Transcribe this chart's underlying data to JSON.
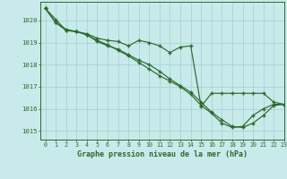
{
  "title": "Graphe pression niveau de la mer (hPa)",
  "background_color": "#c8eaea",
  "grid_color": "#a8d4d4",
  "line_color": "#2d6a2d",
  "xlim": [
    -0.5,
    23
  ],
  "ylim": [
    1014.6,
    1020.85
  ],
  "yticks": [
    1015,
    1016,
    1017,
    1018,
    1019,
    1020
  ],
  "xtick_labels": [
    "0",
    "1",
    "2",
    "3",
    "4",
    "5",
    "6",
    "7",
    "8",
    "9",
    "10",
    "11",
    "12",
    "13",
    "14",
    "15",
    "16",
    "17",
    "18",
    "19",
    "20",
    "21",
    "22",
    "23"
  ],
  "series": [
    [
      1020.55,
      1020.05,
      1019.55,
      1019.5,
      1019.4,
      1019.2,
      1019.1,
      1019.05,
      1018.85,
      1019.1,
      1019.0,
      1018.85,
      1018.55,
      1018.8,
      1018.85,
      1016.1,
      1016.7,
      1016.7,
      1016.7,
      1016.7,
      1016.7,
      1016.7,
      1016.3,
      1016.2
    ],
    [
      1020.55,
      1019.9,
      1019.55,
      1019.5,
      1019.35,
      1019.05,
      1018.85,
      1018.7,
      1018.45,
      1018.2,
      1018.0,
      1017.7,
      1017.35,
      1017.05,
      1016.75,
      1016.3,
      1015.85,
      1015.5,
      1015.2,
      1015.15,
      1015.35,
      1015.7,
      1016.15,
      1016.2
    ],
    [
      1020.55,
      1019.9,
      1019.6,
      1019.5,
      1019.35,
      1019.1,
      1018.9,
      1018.65,
      1018.4,
      1018.1,
      1017.8,
      1017.5,
      1017.25,
      1017.0,
      1016.65,
      1016.15,
      1015.8,
      1015.35,
      1015.15,
      1015.2,
      1015.7,
      1016.0,
      1016.2,
      1016.2
    ]
  ]
}
